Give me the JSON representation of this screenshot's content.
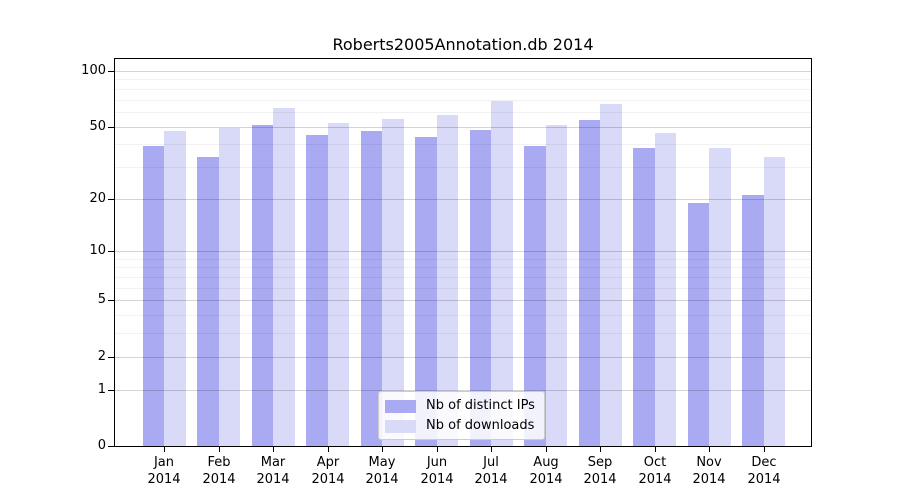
{
  "chart_data": {
    "type": "bar",
    "title": "Roberts2005Annotation.db 2014",
    "categories": [
      "Jan",
      "Feb",
      "Mar",
      "Apr",
      "May",
      "Jun",
      "Jul",
      "Aug",
      "Sep",
      "Oct",
      "Nov",
      "Dec"
    ],
    "category_second_line": "2014",
    "series": [
      {
        "name": "Nb of distinct IPs",
        "color": "#aaaaf2",
        "values": [
          39,
          34,
          51,
          45,
          47,
          44,
          48,
          39,
          54,
          38,
          19,
          21
        ]
      },
      {
        "name": "Nb of downloads",
        "color": "#d9d9f8",
        "values": [
          47,
          49,
          63,
          52,
          55,
          58,
          69,
          51,
          66,
          46,
          38,
          34
        ]
      }
    ],
    "xlabel": "",
    "ylabel": "",
    "yscale": "log1p",
    "ylim": [
      0,
      101
    ],
    "ytick_values": [
      100,
      50,
      20,
      10,
      5,
      2,
      1,
      0
    ],
    "ytick_labels": [
      "100",
      "50",
      "20",
      "10",
      "5",
      "2",
      "1",
      "0"
    ],
    "major_gridline_values": [
      1,
      2,
      5,
      10,
      20,
      50,
      100
    ],
    "minor_gridline_values": [
      3,
      4,
      6,
      7,
      8,
      9,
      30,
      40,
      60,
      70,
      80,
      90
    ],
    "grid": true,
    "legend_position": "bottom-center",
    "colors": {
      "background": "#ffffff",
      "axis": "#000000",
      "major_grid": "#d4d4d4",
      "minor_grid": "#f0f0f0",
      "legend_border": "#cccccc"
    }
  }
}
